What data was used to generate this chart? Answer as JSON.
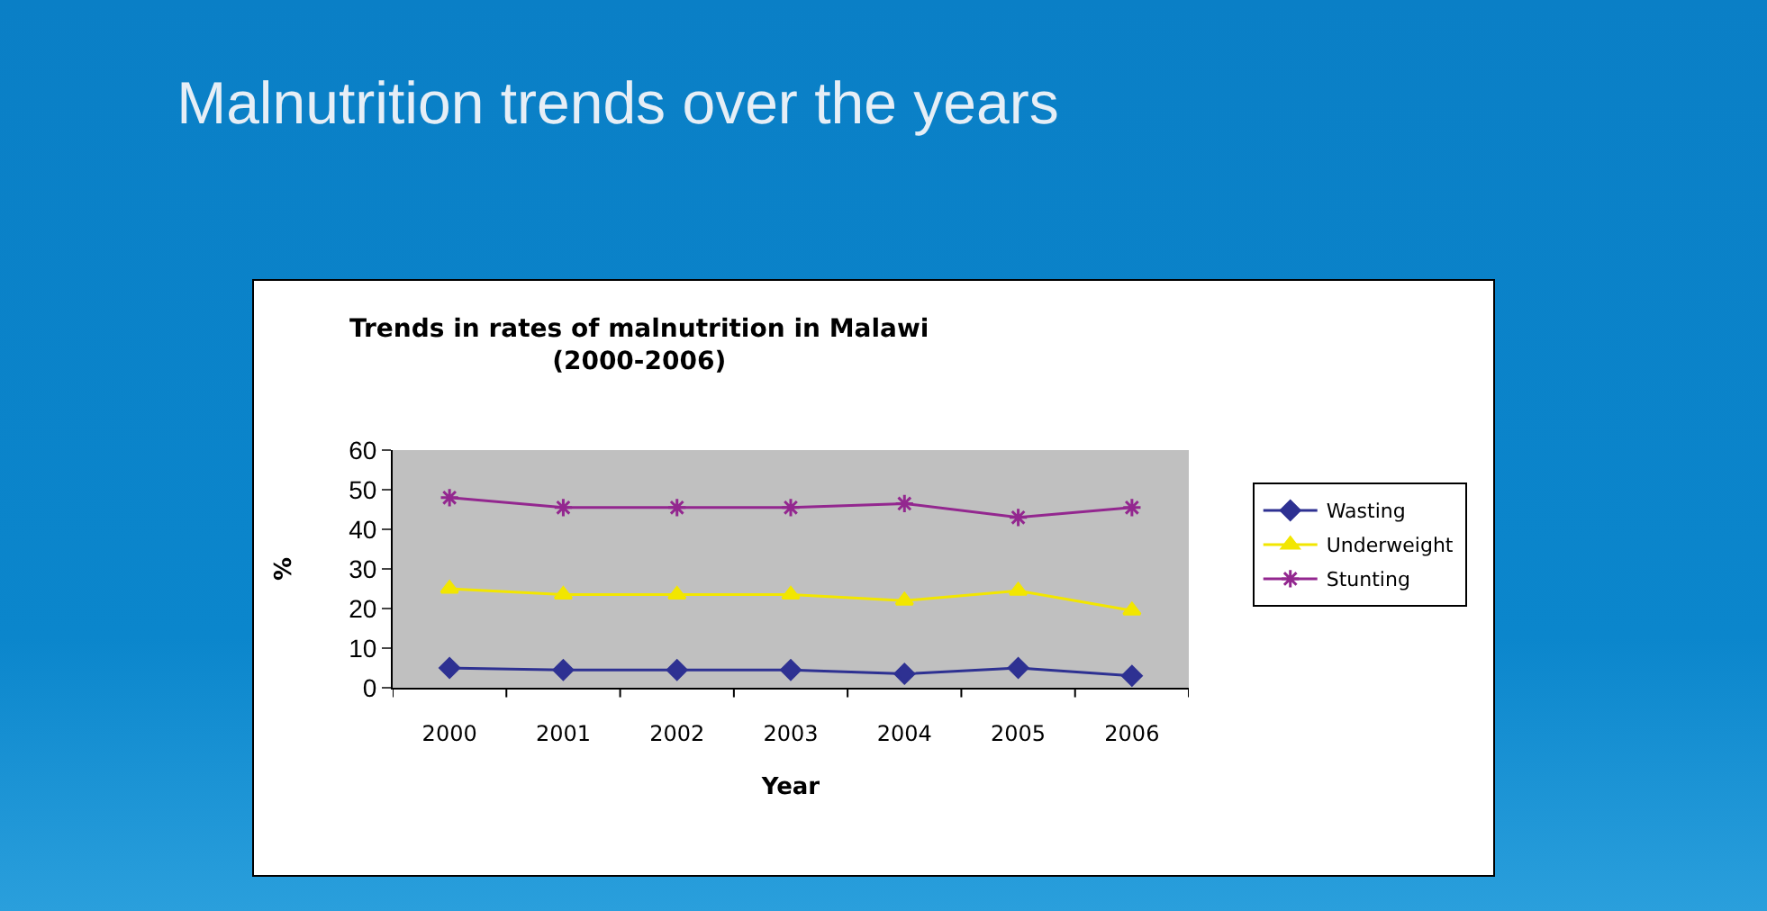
{
  "chart_data": {
    "type": "line",
    "title": "Malnutrition trends over the years",
    "subtitle": "Trends in rates of malnutrition in Malawi\n(2000-2006)",
    "xlabel": "Year",
    "ylabel": "%",
    "categories": [
      "2000",
      "2001",
      "2002",
      "2003",
      "2004",
      "2005",
      "2006"
    ],
    "series": [
      {
        "name": "Wasting",
        "color": "#2e3192",
        "marker": "diamond",
        "values": [
          5,
          4.5,
          4.5,
          4.5,
          3.5,
          5,
          3
        ]
      },
      {
        "name": "Underweight",
        "color": "#f2e600",
        "marker": "triangle",
        "values": [
          25,
          23.5,
          23.5,
          23.5,
          22,
          24.5,
          19.5
        ]
      },
      {
        "name": "Stunting",
        "color": "#93278f",
        "marker": "cross",
        "values": [
          48,
          45.5,
          45.5,
          45.5,
          46.5,
          43,
          45.5
        ]
      }
    ],
    "ylim": [
      0,
      60
    ],
    "yticks": [
      0,
      10,
      20,
      30,
      40,
      50,
      60
    ],
    "grid": false,
    "legend": "right",
    "line_style": "solid"
  }
}
